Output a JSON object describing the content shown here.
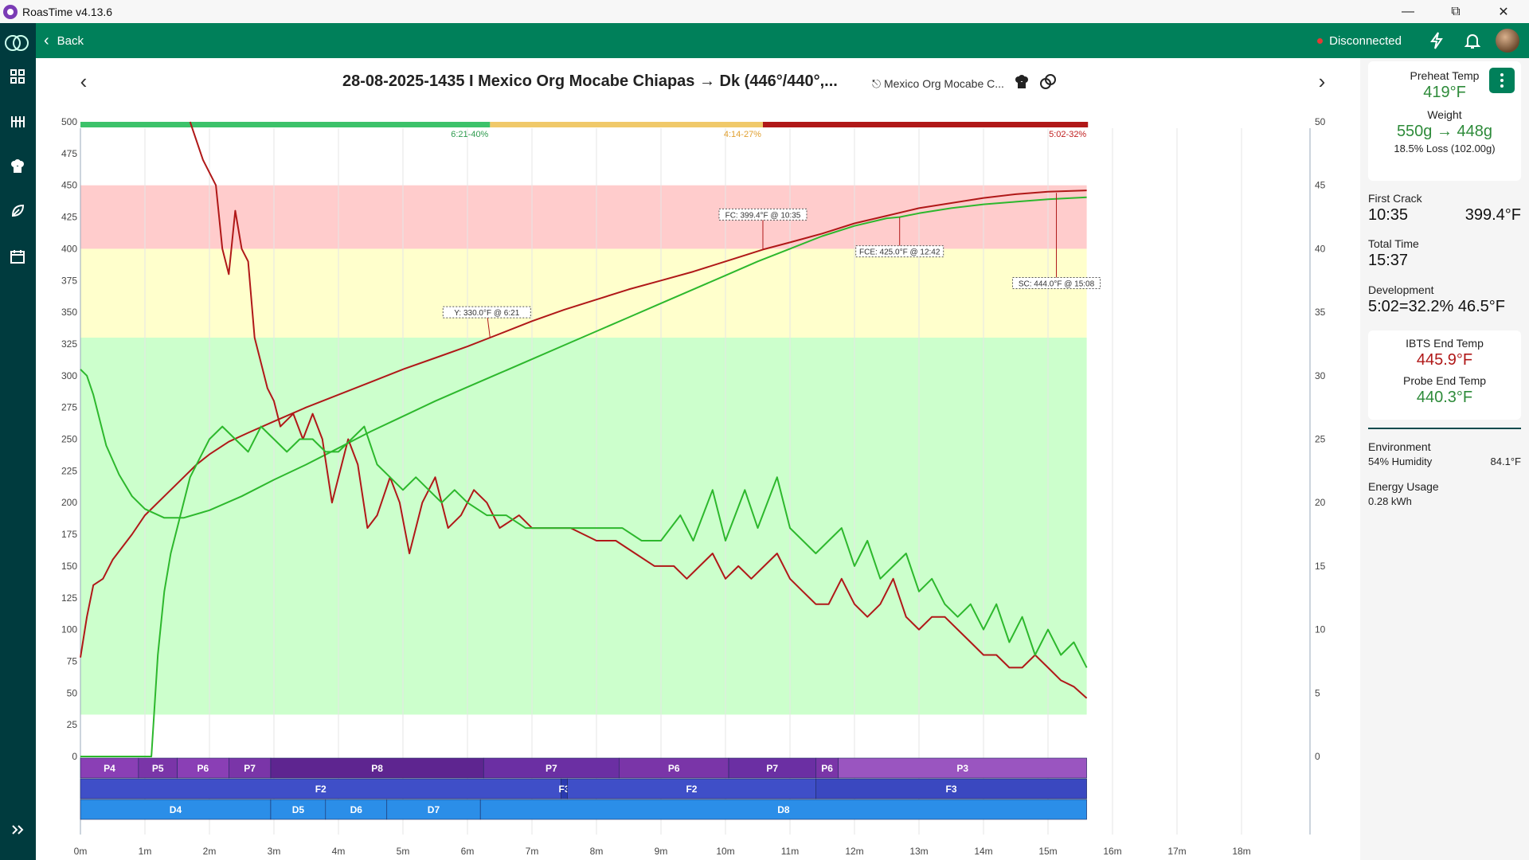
{
  "window": {
    "title": "RoasTime v4.13.6"
  },
  "topbar": {
    "back_label": "Back",
    "status": "Disconnected"
  },
  "roast": {
    "title": "28-08-2025-1435 I Mexico Org Mocabe Chiapas → Dk (446°/440°,...",
    "bean_link": "Mexico Org Mocabe C..."
  },
  "panel": {
    "preheat_label": "Preheat Temp",
    "preheat_value": "419°F",
    "weight_label": "Weight",
    "weight_value": "550g → 448g",
    "weight_loss": "18.5% Loss (102.00g)",
    "first_crack_label": "First Crack",
    "first_crack_time": "10:35",
    "first_crack_temp": "399.4°F",
    "total_time_label": "Total Time",
    "total_time": "15:37",
    "development_label": "Development",
    "development_value": "5:02=32.2% 46.5°F",
    "ibts_label": "IBTS End Temp",
    "ibts_value": "445.9°F",
    "probe_label": "Probe End Temp",
    "probe_value": "440.3°F",
    "environment_label": "Environment",
    "humidity": "54% Humidity",
    "env_temp": "84.1°F",
    "energy_label": "Energy Usage",
    "energy_value": "0.28 kWh"
  },
  "colors": {
    "accent": "#00805a",
    "sidebar": "#003b3e",
    "ibts": "#b01818",
    "probe": "#2db82d"
  },
  "chart_data": {
    "type": "line",
    "x_unit": "minutes",
    "x_ticks": [
      "0m",
      "1m",
      "2m",
      "3m",
      "4m",
      "5m",
      "6m",
      "7m",
      "8m",
      "9m",
      "10m",
      "11m",
      "12m",
      "13m",
      "14m",
      "15m",
      "16m",
      "17m",
      "18m"
    ],
    "xlim": [
      0,
      19
    ],
    "ylim_left": [
      0,
      500
    ],
    "y_ticks_left": [
      "0",
      "25",
      "50",
      "75",
      "100",
      "125",
      "150",
      "175",
      "200",
      "225",
      "250",
      "275",
      "300",
      "325",
      "350",
      "375",
      "400",
      "425",
      "450",
      "475",
      "500"
    ],
    "ylim_right": [
      0,
      50
    ],
    "y_ticks_right": [
      "0",
      "5",
      "10",
      "15",
      "20",
      "25",
      "30",
      "35",
      "40",
      "45",
      "50"
    ],
    "zones": [
      {
        "from": 33,
        "to": 330,
        "color": "#ccffcc"
      },
      {
        "from": 330,
        "to": 400,
        "color": "#ffffcc"
      },
      {
        "from": 400,
        "to": 450,
        "color": "#ffcccc"
      }
    ],
    "phase_bar": [
      {
        "from": 0,
        "to": 6.35,
        "color": "#3cc26a",
        "label": "6:21-40%",
        "label_color": "#2e9b4e"
      },
      {
        "from": 6.35,
        "to": 10.58,
        "color": "#f0c96a",
        "label": "4:14-27%",
        "label_color": "#e0a030"
      },
      {
        "from": 10.58,
        "to": 15.62,
        "color": "#b01818",
        "label": "5:02-32%",
        "label_color": "#c02020"
      }
    ],
    "series": [
      {
        "name": "IBTS",
        "axis": "left",
        "color": "#b01818",
        "points": [
          [
            0,
            78
          ],
          [
            0.1,
            110
          ],
          [
            0.2,
            135
          ],
          [
            0.35,
            140
          ],
          [
            0.5,
            155
          ],
          [
            0.8,
            175
          ],
          [
            1,
            190
          ],
          [
            1.3,
            205
          ],
          [
            1.6,
            220
          ],
          [
            1.8,
            230
          ],
          [
            2,
            238
          ],
          [
            2.3,
            248
          ],
          [
            2.6,
            255
          ],
          [
            3,
            264
          ],
          [
            3.5,
            275
          ],
          [
            4,
            285
          ],
          [
            4.5,
            295
          ],
          [
            5,
            305
          ],
          [
            5.5,
            314
          ],
          [
            6,
            323
          ],
          [
            6.35,
            330
          ],
          [
            7,
            343
          ],
          [
            7.5,
            352
          ],
          [
            8,
            360
          ],
          [
            8.5,
            368
          ],
          [
            9,
            375
          ],
          [
            9.5,
            382
          ],
          [
            10,
            390
          ],
          [
            10.58,
            399.4
          ],
          [
            11,
            405
          ],
          [
            11.5,
            412
          ],
          [
            12,
            420
          ],
          [
            12.5,
            426
          ],
          [
            13,
            432
          ],
          [
            13.5,
            436
          ],
          [
            14,
            440
          ],
          [
            14.5,
            443
          ],
          [
            15,
            445
          ],
          [
            15.6,
            446
          ]
        ]
      },
      {
        "name": "Probe",
        "axis": "left",
        "color": "#2db82d",
        "points": [
          [
            0,
            305
          ],
          [
            0.1,
            300
          ],
          [
            0.2,
            285
          ],
          [
            0.3,
            265
          ],
          [
            0.4,
            245
          ],
          [
            0.6,
            222
          ],
          [
            0.8,
            205
          ],
          [
            1,
            195
          ],
          [
            1.3,
            188
          ],
          [
            1.6,
            188
          ],
          [
            2,
            194
          ],
          [
            2.5,
            205
          ],
          [
            3,
            218
          ],
          [
            3.5,
            230
          ],
          [
            4,
            243
          ],
          [
            4.5,
            256
          ],
          [
            5,
            268
          ],
          [
            5.5,
            280
          ],
          [
            6,
            291
          ],
          [
            6.5,
            302
          ],
          [
            7,
            313
          ],
          [
            7.5,
            324
          ],
          [
            8,
            335
          ],
          [
            8.5,
            346
          ],
          [
            9,
            357
          ],
          [
            9.5,
            368
          ],
          [
            10,
            379
          ],
          [
            10.5,
            390
          ],
          [
            11,
            400
          ],
          [
            11.5,
            410
          ],
          [
            12,
            418
          ],
          [
            12.5,
            424
          ],
          [
            12.7,
            425
          ],
          [
            13,
            428
          ],
          [
            13.5,
            432
          ],
          [
            14,
            435
          ],
          [
            14.5,
            437
          ],
          [
            15,
            439
          ],
          [
            15.6,
            440.5
          ]
        ]
      },
      {
        "name": "RoR IBTS",
        "axis": "right",
        "color": "#b01818",
        "points": [
          [
            1.7,
            53
          ],
          [
            1.9,
            47
          ],
          [
            2.1,
            45
          ],
          [
            2.2,
            40
          ],
          [
            2.3,
            38
          ],
          [
            2.4,
            43
          ],
          [
            2.5,
            40
          ],
          [
            2.6,
            39
          ],
          [
            2.7,
            33
          ],
          [
            2.8,
            31
          ],
          [
            2.9,
            29
          ],
          [
            3,
            28
          ],
          [
            3.1,
            26
          ],
          [
            3.3,
            27
          ],
          [
            3.45,
            25
          ],
          [
            3.6,
            27
          ],
          [
            3.75,
            25
          ],
          [
            3.9,
            20
          ],
          [
            4.05,
            23
          ],
          [
            4.15,
            25
          ],
          [
            4.3,
            23
          ],
          [
            4.45,
            18
          ],
          [
            4.6,
            19
          ],
          [
            4.8,
            22
          ],
          [
            4.95,
            20
          ],
          [
            5.1,
            16
          ],
          [
            5.3,
            20
          ],
          [
            5.5,
            22
          ],
          [
            5.7,
            18
          ],
          [
            5.9,
            19
          ],
          [
            6.1,
            21
          ],
          [
            6.3,
            20
          ],
          [
            6.5,
            18
          ],
          [
            6.8,
            19
          ],
          [
            7,
            18
          ],
          [
            7.3,
            18
          ],
          [
            7.6,
            18
          ],
          [
            8,
            17
          ],
          [
            8.3,
            17
          ],
          [
            8.6,
            16
          ],
          [
            8.9,
            15
          ],
          [
            9.2,
            15
          ],
          [
            9.4,
            14
          ],
          [
            9.6,
            15
          ],
          [
            9.8,
            16
          ],
          [
            10,
            14
          ],
          [
            10.2,
            15
          ],
          [
            10.4,
            14
          ],
          [
            10.6,
            15
          ],
          [
            10.8,
            16
          ],
          [
            11,
            14
          ],
          [
            11.2,
            13
          ],
          [
            11.4,
            12
          ],
          [
            11.6,
            12
          ],
          [
            11.8,
            14
          ],
          [
            12,
            12
          ],
          [
            12.2,
            11
          ],
          [
            12.4,
            12
          ],
          [
            12.6,
            14
          ],
          [
            12.8,
            11
          ],
          [
            13,
            10
          ],
          [
            13.2,
            11
          ],
          [
            13.4,
            11
          ],
          [
            13.6,
            10
          ],
          [
            13.8,
            9
          ],
          [
            14,
            8
          ],
          [
            14.2,
            8
          ],
          [
            14.4,
            7
          ],
          [
            14.6,
            7
          ],
          [
            14.8,
            8
          ],
          [
            15,
            7
          ],
          [
            15.2,
            6
          ],
          [
            15.4,
            5.5
          ],
          [
            15.6,
            4.6
          ]
        ]
      },
      {
        "name": "RoR Probe",
        "axis": "right",
        "color": "#2db82d",
        "points": [
          [
            0,
            0
          ],
          [
            1.1,
            0
          ],
          [
            1.2,
            8
          ],
          [
            1.3,
            13
          ],
          [
            1.4,
            16
          ],
          [
            1.5,
            18
          ],
          [
            1.7,
            22
          ],
          [
            1.9,
            24
          ],
          [
            2,
            25
          ],
          [
            2.2,
            26
          ],
          [
            2.4,
            25
          ],
          [
            2.6,
            24
          ],
          [
            2.8,
            26
          ],
          [
            3,
            25
          ],
          [
            3.2,
            24
          ],
          [
            3.4,
            25
          ],
          [
            3.6,
            25
          ],
          [
            3.8,
            24
          ],
          [
            4,
            24
          ],
          [
            4.2,
            25
          ],
          [
            4.4,
            26
          ],
          [
            4.6,
            23
          ],
          [
            4.8,
            22
          ],
          [
            5,
            21
          ],
          [
            5.2,
            22
          ],
          [
            5.4,
            21
          ],
          [
            5.6,
            20
          ],
          [
            5.8,
            21
          ],
          [
            6,
            20
          ],
          [
            6.3,
            19
          ],
          [
            6.6,
            19
          ],
          [
            6.9,
            18
          ],
          [
            7.2,
            18
          ],
          [
            7.5,
            18
          ],
          [
            7.8,
            18
          ],
          [
            8.1,
            18
          ],
          [
            8.4,
            18
          ],
          [
            8.7,
            17
          ],
          [
            9,
            17
          ],
          [
            9.3,
            19
          ],
          [
            9.5,
            17
          ],
          [
            9.8,
            21
          ],
          [
            10,
            17
          ],
          [
            10.3,
            21
          ],
          [
            10.5,
            18
          ],
          [
            10.8,
            22
          ],
          [
            11,
            18
          ],
          [
            11.2,
            17
          ],
          [
            11.4,
            16
          ],
          [
            11.6,
            17
          ],
          [
            11.8,
            18
          ],
          [
            12,
            15
          ],
          [
            12.2,
            17
          ],
          [
            12.4,
            14
          ],
          [
            12.6,
            15
          ],
          [
            12.8,
            16
          ],
          [
            13,
            13
          ],
          [
            13.2,
            14
          ],
          [
            13.4,
            12
          ],
          [
            13.6,
            11
          ],
          [
            13.8,
            12
          ],
          [
            14,
            10
          ],
          [
            14.2,
            12
          ],
          [
            14.4,
            9
          ],
          [
            14.6,
            11
          ],
          [
            14.8,
            8
          ],
          [
            15,
            10
          ],
          [
            15.2,
            8
          ],
          [
            15.4,
            9
          ],
          [
            15.6,
            7
          ]
        ]
      }
    ],
    "annotations": [
      {
        "label": "Y: 330.0°F @ 6:21",
        "x": 6.35,
        "y": 330,
        "label_x": 6.3,
        "label_y": 350
      },
      {
        "label": "FC: 399.4°F @ 10:35",
        "x": 10.58,
        "y": 399.4,
        "label_x": 10.58,
        "label_y": 427
      },
      {
        "label": "FCE: 425.0°F @ 12:42",
        "x": 12.7,
        "y": 425,
        "label_x": 12.7,
        "label_y": 398
      },
      {
        "label": "SC: 444.0°F @ 15:08",
        "x": 15.13,
        "y": 444,
        "label_x": 15.13,
        "label_y": 373
      }
    ],
    "rows": [
      {
        "name": "power",
        "color": "#6b2fa3",
        "segments": [
          {
            "from": 0,
            "to": 0.9,
            "label": "P4",
            "color": "#8a3fb5"
          },
          {
            "from": 0.9,
            "to": 1.5,
            "label": "P5",
            "color": "#7a35a8"
          },
          {
            "from": 1.5,
            "to": 2.3,
            "label": "P6",
            "color": "#8a3fb5"
          },
          {
            "from": 2.3,
            "to": 2.95,
            "label": "P7",
            "color": "#7a35a8"
          },
          {
            "from": 2.95,
            "to": 6.25,
            "label": "P8",
            "color": "#5e2590"
          },
          {
            "from": 6.25,
            "to": 8.35,
            "label": "P7",
            "color": "#6b2fa3"
          },
          {
            "from": 8.35,
            "to": 10.05,
            "label": "P6",
            "color": "#7a35a8"
          },
          {
            "from": 10.05,
            "to": 11.4,
            "label": "P7",
            "color": "#6b2fa3"
          },
          {
            "from": 11.4,
            "to": 11.75,
            "label": "P6",
            "color": "#7a35a8"
          },
          {
            "from": 11.75,
            "to": 15.6,
            "label": "P3",
            "color": "#9a55c0"
          }
        ]
      },
      {
        "name": "fan",
        "color": "#3f51b5",
        "segments": [
          {
            "from": 0,
            "to": 7.45,
            "label": "F2",
            "color": "#3f4fc8"
          },
          {
            "from": 7.45,
            "to": 7.55,
            "label": "F3",
            "color": "#2a3ab0"
          },
          {
            "from": 7.55,
            "to": 11.4,
            "label": "F2",
            "color": "#3f4fc8"
          },
          {
            "from": 11.4,
            "to": 15.6,
            "label": "F3",
            "color": "#3a48c0"
          }
        ]
      },
      {
        "name": "drum",
        "color": "#2196f3",
        "segments": [
          {
            "from": 0,
            "to": 2.95,
            "label": "D4",
            "color": "#2b8ee8"
          },
          {
            "from": 2.95,
            "to": 3.8,
            "label": "D5",
            "color": "#2b8ee8"
          },
          {
            "from": 3.8,
            "to": 4.75,
            "label": "D6",
            "color": "#2b8ee8"
          },
          {
            "from": 4.75,
            "to": 6.2,
            "label": "D7",
            "color": "#2b8ee8"
          },
          {
            "from": 6.2,
            "to": 15.6,
            "label": "D8",
            "color": "#2b8ee8"
          }
        ]
      }
    ]
  }
}
